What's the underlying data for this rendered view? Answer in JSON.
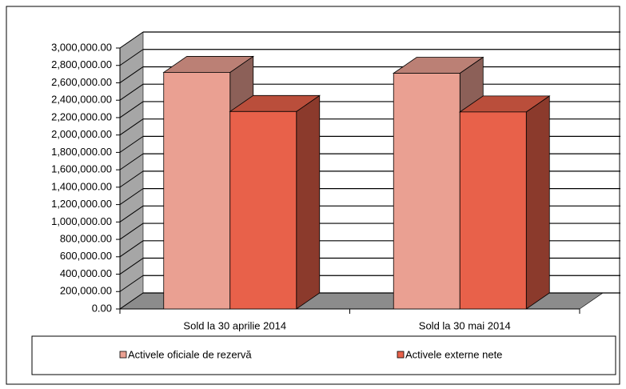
{
  "chart_data": {
    "type": "bar3d",
    "categories": [
      "Sold la 30 aprilie 2014",
      "Sold la 30 mai 2014"
    ],
    "series": [
      {
        "name": "Activele oficiale de rezervă",
        "color": "#eaa092",
        "values": [
          2720000,
          2710000
        ]
      },
      {
        "name": "Activele externe nete",
        "color": "#e8614a",
        "values": [
          2270000,
          2265000
        ]
      }
    ],
    "ylim": [
      0,
      3000000
    ],
    "yticks": [
      {
        "value": 0,
        "label": "0.00"
      },
      {
        "value": 200000,
        "label": "200,000.00"
      },
      {
        "value": 400000,
        "label": "400,000.00"
      },
      {
        "value": 600000,
        "label": "600,000.00"
      },
      {
        "value": 800000,
        "label": "800,000.00"
      },
      {
        "value": 1000000,
        "label": "1,000,000.00"
      },
      {
        "value": 1200000,
        "label": "1,200,000.00"
      },
      {
        "value": 1400000,
        "label": "1,400,000.00"
      },
      {
        "value": 1600000,
        "label": "1,600,000.00"
      },
      {
        "value": 1800000,
        "label": "1,800,000.00"
      },
      {
        "value": 2000000,
        "label": "2,000,000.00"
      },
      {
        "value": 2200000,
        "label": "2,200,000.00"
      },
      {
        "value": 2400000,
        "label": "2,400,000.00"
      },
      {
        "value": 2600000,
        "label": "2,600,000.00"
      },
      {
        "value": 2800000,
        "label": "2,800,000.00"
      },
      {
        "value": 3000000,
        "label": "3,000,000.00"
      }
    ],
    "grid": true
  }
}
